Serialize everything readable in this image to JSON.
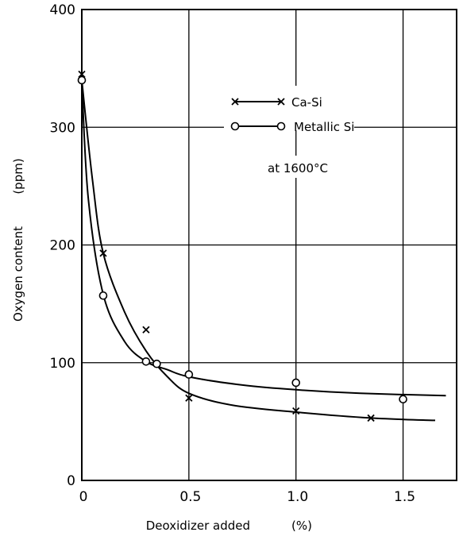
{
  "chart_data": {
    "type": "line",
    "title": "",
    "xlabel": "Deoxidizer added",
    "xunit": "(%)",
    "ylabel": "Oxygen content",
    "yunit": "(ppm)",
    "xlim": [
      0,
      1.75
    ],
    "ylim": [
      0,
      400
    ],
    "x_ticks": [
      {
        "value": 0,
        "label": "0"
      },
      {
        "value": 0.5,
        "label": "0.5"
      },
      {
        "value": 1.0,
        "label": "1.0"
      },
      {
        "value": 1.5,
        "label": "1.5"
      }
    ],
    "y_ticks": [
      {
        "value": 0,
        "label": "0"
      },
      {
        "value": 100,
        "label": "100"
      },
      {
        "value": 200,
        "label": "200"
      },
      {
        "value": 300,
        "label": "300"
      },
      {
        "value": 400,
        "label": "400"
      }
    ],
    "grid": true,
    "legend_position": "top-right",
    "annotation": "at 1600°C",
    "series": [
      {
        "name": "Ca-Si",
        "marker": "x",
        "points": [
          {
            "x": 0,
            "y": 345
          },
          {
            "x": 0.1,
            "y": 193
          },
          {
            "x": 0.3,
            "y": 128
          },
          {
            "x": 0.5,
            "y": 70
          },
          {
            "x": 1.0,
            "y": 59
          },
          {
            "x": 1.35,
            "y": 53
          }
        ],
        "curve": [
          {
            "x": 0,
            "y": 340
          },
          {
            "x": 0.05,
            "y": 255
          },
          {
            "x": 0.1,
            "y": 193
          },
          {
            "x": 0.2,
            "y": 143
          },
          {
            "x": 0.3,
            "y": 110
          },
          {
            "x": 0.4,
            "y": 88
          },
          {
            "x": 0.5,
            "y": 74
          },
          {
            "x": 0.7,
            "y": 64
          },
          {
            "x": 1.0,
            "y": 58
          },
          {
            "x": 1.35,
            "y": 53
          },
          {
            "x": 1.65,
            "y": 51
          }
        ]
      },
      {
        "name": "Metallic Si",
        "marker": "o",
        "points": [
          {
            "x": 0,
            "y": 340
          },
          {
            "x": 0.1,
            "y": 157
          },
          {
            "x": 0.3,
            "y": 101
          },
          {
            "x": 0.35,
            "y": 99
          },
          {
            "x": 0.5,
            "y": 90
          },
          {
            "x": 1.0,
            "y": 83
          },
          {
            "x": 1.5,
            "y": 69
          }
        ],
        "curve": [
          {
            "x": 0,
            "y": 340
          },
          {
            "x": 0.03,
            "y": 240
          },
          {
            "x": 0.1,
            "y": 158
          },
          {
            "x": 0.2,
            "y": 118
          },
          {
            "x": 0.3,
            "y": 101
          },
          {
            "x": 0.4,
            "y": 94
          },
          {
            "x": 0.5,
            "y": 88
          },
          {
            "x": 0.75,
            "y": 81
          },
          {
            "x": 1.0,
            "y": 77
          },
          {
            "x": 1.3,
            "y": 74
          },
          {
            "x": 1.7,
            "y": 72
          }
        ]
      }
    ]
  }
}
